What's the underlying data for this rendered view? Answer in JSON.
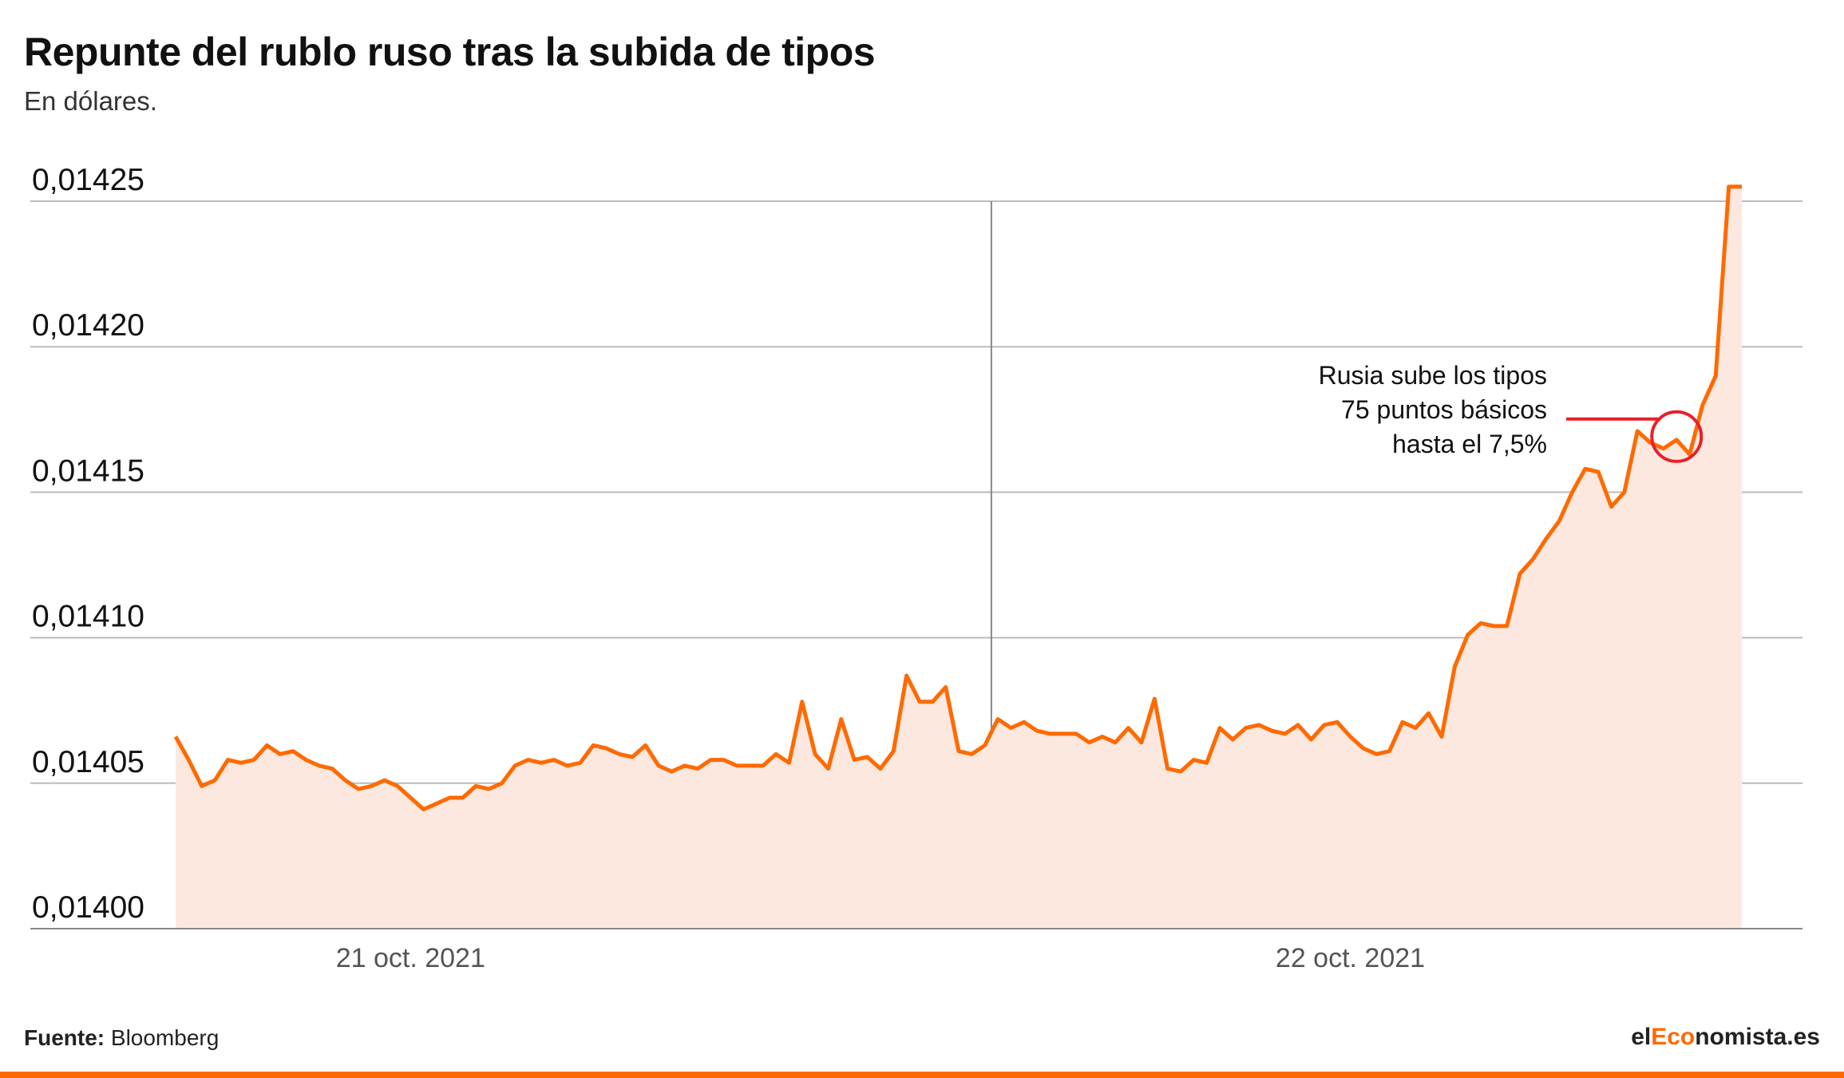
{
  "title": "Repunte del rublo ruso tras la subida de tipos",
  "subtitle": "En dólares.",
  "footer": {
    "source_label": "Fuente:",
    "source_value": "Bloomberg",
    "brand_prefix": "el",
    "brand_highlight": "Eco",
    "brand_suffix": "nomista.es"
  },
  "colors": {
    "line": "#ff6a00",
    "area": "#fde8e0",
    "annotation": "#e8202a",
    "grid": "#bbbbbb"
  },
  "chart_data": {
    "type": "area",
    "title": "Repunte del rublo ruso tras la subida de tipos",
    "subtitle": "En dólares.",
    "xlabel": "",
    "ylabel": "",
    "ylim": [
      0.014,
      0.01425
    ],
    "yticks": [
      "0,01400",
      "0,01405",
      "0,01410",
      "0,01415",
      "0,01420",
      "0,01425"
    ],
    "ytick_values": [
      0.014,
      0.01405,
      0.0141,
      0.01415,
      0.0142,
      0.01425
    ],
    "xticks": [
      "21 oct. 2021",
      "22 oct. 2021"
    ],
    "day_divider": "after point 62",
    "grid": true,
    "series": [
      {
        "values": [
          0.014066,
          0.014058,
          0.014049,
          0.014051,
          0.014058,
          0.014057,
          0.014058,
          0.014063,
          0.01406,
          0.014061,
          0.014058,
          0.014056,
          0.014055,
          0.014051,
          0.014048,
          0.014049,
          0.014051,
          0.014049,
          0.014045,
          0.014041,
          0.014043,
          0.014045,
          0.014045,
          0.014049,
          0.014048,
          0.01405,
          0.014056,
          0.014058,
          0.014057,
          0.014058,
          0.014056,
          0.014057,
          0.014063,
          0.014062,
          0.01406,
          0.014059,
          0.014063,
          0.014056,
          0.014054,
          0.014056,
          0.014055,
          0.014058,
          0.014058,
          0.014056,
          0.014056,
          0.014056,
          0.01406,
          0.014057,
          0.014078,
          0.01406,
          0.014055,
          0.014072,
          0.014058,
          0.014059,
          0.014055,
          0.014061,
          0.014087,
          0.014078,
          0.014078,
          0.014083,
          0.014061,
          0.01406,
          0.014063,
          0.014072,
          0.014069,
          0.014071,
          0.014068,
          0.014067,
          0.014067,
          0.014067,
          0.014064,
          0.014066,
          0.014064,
          0.014069,
          0.014064,
          0.014079,
          0.014055,
          0.014054,
          0.014058,
          0.014057,
          0.014069,
          0.014065,
          0.014069,
          0.01407,
          0.014068,
          0.014067,
          0.01407,
          0.014065,
          0.01407,
          0.014071,
          0.014066,
          0.014062,
          0.01406,
          0.014061,
          0.014071,
          0.014069,
          0.014074,
          0.014066,
          0.01409,
          0.014101,
          0.014105,
          0.014104,
          0.014104,
          0.014122,
          0.014127,
          0.014134,
          0.01414,
          0.01415,
          0.014158,
          0.014157,
          0.014145,
          0.01415,
          0.014171,
          0.014167,
          0.014165,
          0.014168,
          0.014163,
          0.01418,
          0.01419,
          0.014255,
          0.014255
        ]
      }
    ],
    "annotation": {
      "lines": [
        "Rusia sube los tipos",
        "75 puntos básicos",
        "hasta el 7,5%"
      ],
      "target_point": 115
    }
  }
}
